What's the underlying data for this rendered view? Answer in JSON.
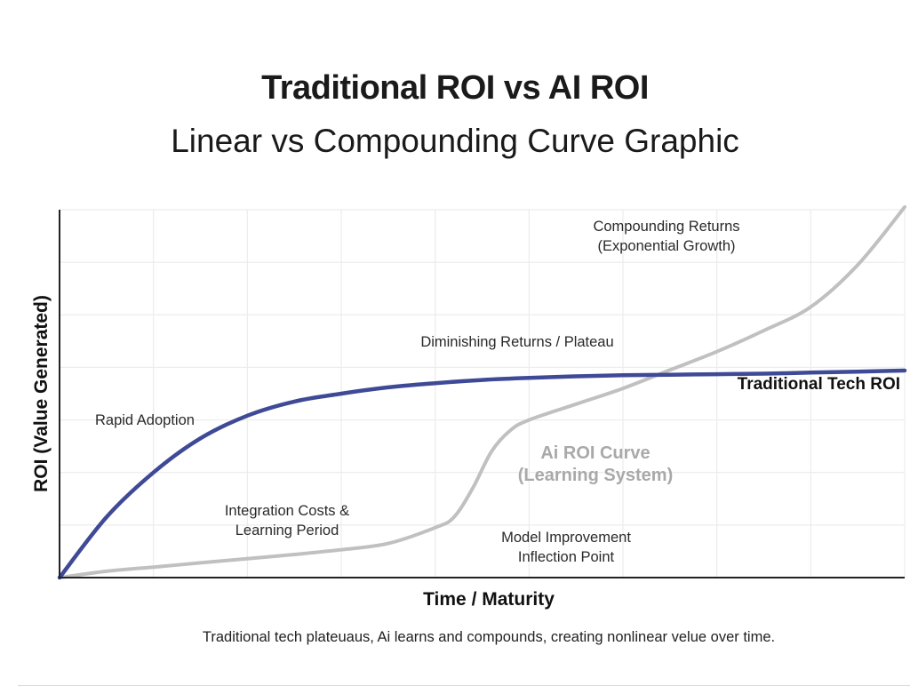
{
  "chart_data": {
    "type": "line",
    "title": "Traditional ROI vs AI ROI",
    "subtitle": "Linear vs Compounding Curve Graphic",
    "xlabel": "Time / Maturity",
    "ylabel": "ROI (Value Generated)",
    "xlim": [
      0,
      9
    ],
    "ylim": [
      0,
      7
    ],
    "grid": true,
    "series": [
      {
        "name": "Traditional Tech ROI",
        "color": "#3f4a97",
        "x": [
          0,
          0.5,
          1,
          1.5,
          2,
          2.5,
          3,
          3.5,
          4,
          4.5,
          5,
          5.5,
          6,
          6.5,
          7,
          7.5,
          8,
          8.5,
          9
        ],
        "y": [
          0,
          1.15,
          2.0,
          2.65,
          3.08,
          3.35,
          3.5,
          3.62,
          3.7,
          3.76,
          3.8,
          3.83,
          3.85,
          3.86,
          3.87,
          3.88,
          3.9,
          3.92,
          3.94
        ]
      },
      {
        "name": "Ai ROI Curve (Learning System)",
        "color": "#c0c0c0",
        "x": [
          0,
          0.5,
          1,
          1.5,
          2,
          2.5,
          3,
          3.5,
          4,
          4.2,
          4.4,
          4.6,
          4.8,
          5,
          5.5,
          6,
          6.5,
          7,
          7.5,
          8,
          8.5,
          9
        ],
        "y": [
          0,
          0.12,
          0.2,
          0.28,
          0.36,
          0.44,
          0.53,
          0.65,
          0.95,
          1.15,
          1.7,
          2.4,
          2.8,
          3.0,
          3.3,
          3.6,
          3.95,
          4.3,
          4.7,
          5.15,
          5.95,
          7.05
        ]
      }
    ],
    "annotations": [
      {
        "text": "Rapid Adoption"
      },
      {
        "text": "Diminishing Returns / Plateau"
      },
      {
        "text": "Compounding Returns"
      },
      {
        "text": "(Exponential Growth)"
      },
      {
        "text": "Integration Costs &"
      },
      {
        "text": "Learning Period"
      },
      {
        "text": "Model Improvement"
      },
      {
        "text": "Inflection Point"
      }
    ],
    "series_labels": {
      "traditional": "Traditional Tech ROI",
      "ai_line1": "Ai ROI Curve",
      "ai_line2": "(Learning System)"
    }
  },
  "caption": "Traditional tech plateuaus, Ai learns and compounds, creating nonlinear velue over time."
}
